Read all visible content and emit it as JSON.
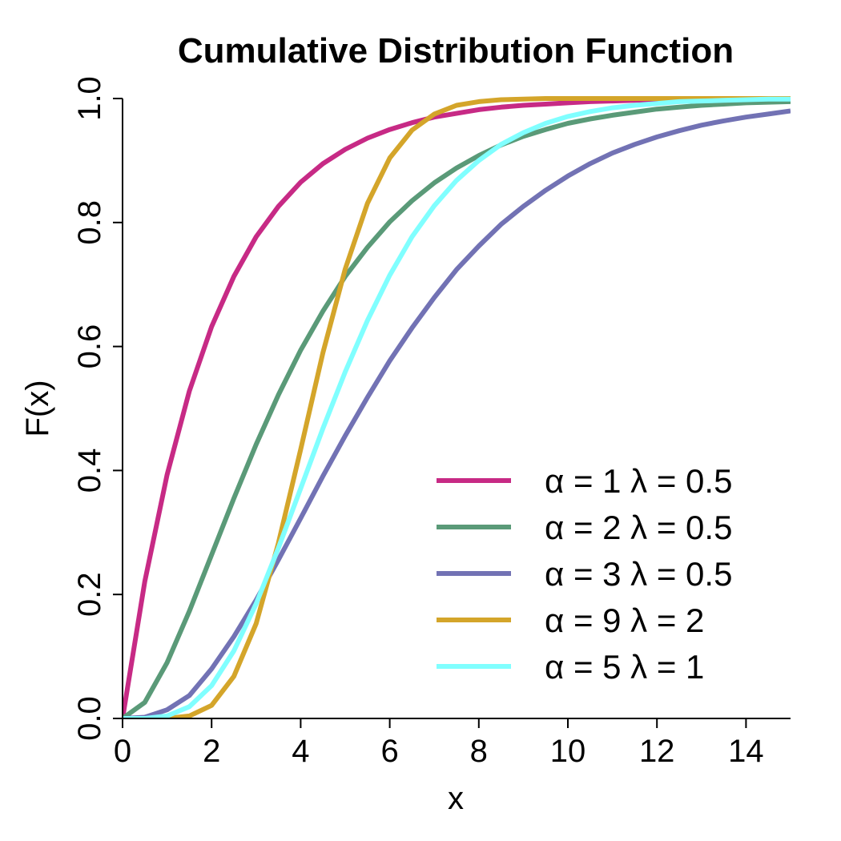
{
  "chart_data": {
    "type": "line",
    "title": "Cumulative Distribution Function",
    "xlabel": "x",
    "ylabel": "F(x)",
    "xlim": [
      0,
      15
    ],
    "ylim": [
      0,
      1
    ],
    "xticks": [
      "0",
      "2",
      "4",
      "6",
      "8",
      "10",
      "12",
      "14"
    ],
    "yticks": [
      "0.0",
      "0.2",
      "0.4",
      "0.6",
      "0.8",
      "1.0"
    ],
    "legend_position": "bottom-right",
    "x": [
      0,
      0.5,
      1,
      1.5,
      2,
      2.5,
      3,
      3.5,
      4,
      4.5,
      5,
      5.5,
      6,
      6.5,
      7,
      7.5,
      8,
      8.5,
      9,
      9.5,
      10,
      10.5,
      11,
      11.5,
      12,
      12.5,
      13,
      13.5,
      14,
      14.5,
      15
    ],
    "series": [
      {
        "name": "α = 1  λ = 0.5",
        "color": "#C72A85",
        "values": [
          0.0,
          0.221,
          0.393,
          0.528,
          0.632,
          0.713,
          0.777,
          0.826,
          0.865,
          0.895,
          0.918,
          0.936,
          0.95,
          0.961,
          0.97,
          0.976,
          0.982,
          0.986,
          0.989,
          0.991,
          0.993,
          0.995,
          0.996,
          0.997,
          0.998,
          0.998,
          0.998,
          0.999,
          0.999,
          0.999,
          0.999
        ]
      },
      {
        "name": "α = 2  λ = 0.5",
        "color": "#5A9A78",
        "values": [
          0.0,
          0.026,
          0.09,
          0.173,
          0.264,
          0.355,
          0.442,
          0.522,
          0.594,
          0.657,
          0.713,
          0.76,
          0.801,
          0.835,
          0.864,
          0.888,
          0.908,
          0.925,
          0.939,
          0.95,
          0.96,
          0.967,
          0.973,
          0.978,
          0.983,
          0.986,
          0.989,
          0.991,
          0.993,
          0.994,
          0.995
        ]
      },
      {
        "name": "α = 3  λ = 0.5",
        "color": "#7272B4",
        "values": [
          0.0,
          0.002,
          0.014,
          0.037,
          0.08,
          0.132,
          0.191,
          0.256,
          0.323,
          0.391,
          0.456,
          0.518,
          0.577,
          0.63,
          0.679,
          0.724,
          0.762,
          0.797,
          0.826,
          0.852,
          0.875,
          0.895,
          0.912,
          0.926,
          0.938,
          0.948,
          0.957,
          0.964,
          0.97,
          0.975,
          0.98
        ]
      },
      {
        "name": "α = 9  λ = 2",
        "color": "#D4A52A",
        "values": [
          0.0,
          0.0,
          0.0,
          0.004,
          0.021,
          0.068,
          0.153,
          0.283,
          0.434,
          0.59,
          0.725,
          0.831,
          0.904,
          0.949,
          0.975,
          0.989,
          0.995,
          0.998,
          0.999,
          1.0,
          1.0,
          1.0,
          1.0,
          1.0,
          1.0,
          1.0,
          1.0,
          1.0,
          1.0,
          1.0,
          1.0
        ]
      },
      {
        "name": "α = 5  λ = 1",
        "color": "#80FFFF",
        "values": [
          0.0,
          0.0,
          0.004,
          0.019,
          0.053,
          0.109,
          0.185,
          0.275,
          0.371,
          0.468,
          0.559,
          0.642,
          0.715,
          0.777,
          0.827,
          0.868,
          0.9,
          0.926,
          0.945,
          0.96,
          0.971,
          0.979,
          0.985,
          0.989,
          0.992,
          0.995,
          0.996,
          0.997,
          0.998,
          0.999,
          0.999
        ]
      }
    ]
  }
}
